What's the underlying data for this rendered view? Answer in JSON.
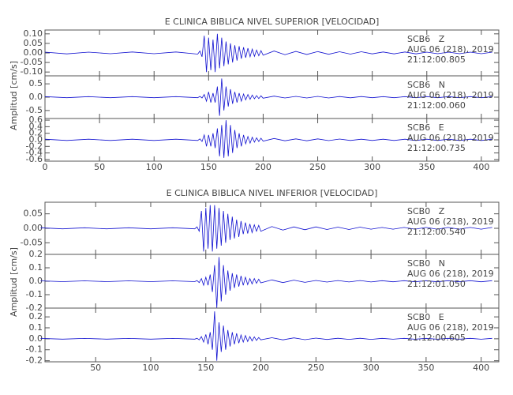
{
  "chart_data": [
    {
      "type": "line",
      "title": "E CLINICA BIBLICA NIVEL SUPERIOR [VELOCIDAD]",
      "ylabel": "Amplitud [cm/s]",
      "xlim": [
        0,
        416
      ],
      "xticks": [
        0,
        50,
        100,
        150,
        200,
        250,
        300,
        350,
        400
      ],
      "color": "#1010d0",
      "x": [
        0,
        20,
        40,
        60,
        80,
        100,
        120,
        140,
        142,
        144,
        146,
        148,
        150,
        152,
        154,
        156,
        158,
        160,
        162,
        164,
        166,
        168,
        170,
        172,
        174,
        176,
        178,
        180,
        182,
        184,
        186,
        188,
        190,
        192,
        194,
        196,
        198,
        200,
        210,
        220,
        230,
        240,
        250,
        260,
        270,
        280,
        290,
        300,
        310,
        320,
        330,
        340,
        350,
        360,
        370,
        380,
        390,
        400,
        410
      ],
      "panels": [
        {
          "ylim": [
            -0.12,
            0.12
          ],
          "yticks": [
            {
              "value": 0.1,
              "label": "0.10"
            },
            {
              "value": 0.05,
              "label": "0.05"
            },
            {
              "value": 0,
              "label": "0.00"
            },
            {
              "value": -0.05,
              "label": "-0.05"
            },
            {
              "value": -0.1,
              "label": "-0.10"
            }
          ],
          "station": "SCB6   Z",
          "date": "AUG 06 (218), 2019",
          "time": "21:12:00.805",
          "values": [
            0.004,
            -0.005,
            0.004,
            -0.004,
            0.005,
            -0.004,
            0.005,
            -0.006,
            0.01,
            -0.02,
            0.09,
            -0.1,
            0.08,
            -0.09,
            0.07,
            -0.1,
            0.1,
            -0.08,
            0.08,
            -0.07,
            0.06,
            -0.06,
            0.05,
            -0.05,
            0.04,
            -0.04,
            0.035,
            -0.03,
            0.03,
            -0.025,
            0.025,
            -0.02,
            0.02,
            -0.018,
            0.015,
            -0.015,
            0.012,
            -0.012,
            0.01,
            -0.009,
            0.008,
            -0.008,
            0.007,
            -0.007,
            0.006,
            -0.006,
            0.006,
            -0.005,
            0.005,
            -0.005,
            0.005,
            -0.005,
            0.004,
            -0.004,
            0.004,
            -0.004,
            0.004,
            -0.004,
            0.004
          ]
        },
        {
          "ylim": [
            -0.8,
            0.8
          ],
          "yticks": [
            0.5,
            {
              "value": 0,
              "label": "0.0"
            },
            -0.5
          ],
          "station": "SCB6   N",
          "date": "AUG 06 (218), 2019",
          "time": "21:12:00.060",
          "values": [
            0.02,
            -0.02,
            0.02,
            -0.02,
            0.02,
            -0.02,
            0.02,
            -0.02,
            0.03,
            -0.03,
            0.1,
            -0.15,
            0.2,
            -0.2,
            0.15,
            -0.2,
            0.4,
            -0.7,
            0.7,
            -0.5,
            0.4,
            -0.35,
            0.3,
            -0.25,
            0.2,
            -0.2,
            0.15,
            -0.15,
            0.12,
            -0.1,
            0.1,
            -0.08,
            0.08,
            -0.06,
            0.06,
            -0.05,
            0.05,
            -0.04,
            0.04,
            -0.03,
            0.03,
            -0.03,
            0.03,
            -0.03,
            0.025,
            -0.025,
            0.025,
            -0.02,
            0.02,
            -0.02,
            0.02,
            -0.02,
            0.02,
            -0.02,
            0.02,
            -0.02,
            0.02,
            -0.02,
            0.02
          ]
        },
        {
          "ylim": [
            -0.65,
            0.65
          ],
          "yticks": [
            0.6,
            0.4,
            0.2,
            {
              "value": 0,
              "label": "0.0"
            },
            -0.2,
            -0.4,
            -0.6
          ],
          "station": "SCB6   E",
          "date": "AUG 06 (218), 2019",
          "time": "21:12:00.735",
          "values": [
            0.02,
            -0.02,
            0.02,
            -0.02,
            0.02,
            -0.02,
            0.02,
            -0.02,
            0.03,
            -0.05,
            0.15,
            -0.2,
            0.15,
            -0.2,
            0.2,
            -0.25,
            0.35,
            -0.5,
            0.45,
            -0.55,
            0.6,
            -0.5,
            0.45,
            -0.4,
            0.3,
            -0.25,
            0.2,
            -0.2,
            0.15,
            -0.12,
            0.1,
            -0.1,
            0.08,
            -0.07,
            0.06,
            -0.05,
            0.05,
            -0.04,
            0.04,
            -0.03,
            0.03,
            -0.03,
            0.03,
            -0.025,
            0.025,
            -0.02,
            0.02,
            -0.02,
            0.02,
            -0.02,
            0.02,
            -0.02,
            0.02,
            -0.02,
            0.02,
            -0.02,
            0.02,
            -0.02,
            0.02
          ]
        }
      ]
    },
    {
      "type": "line",
      "title": "E CLINICA BIBLICA NIVEL INFERIOR [VELOCIDAD]",
      "ylabel": "Amplitud [cm/s]",
      "xlim": [
        4,
        416
      ],
      "xticks": [
        50,
        100,
        150,
        200,
        250,
        300,
        350,
        400
      ],
      "color": "#1010d0",
      "x": [
        0,
        20,
        40,
        60,
        80,
        100,
        120,
        140,
        142,
        144,
        146,
        148,
        150,
        152,
        154,
        156,
        158,
        160,
        162,
        164,
        166,
        168,
        170,
        172,
        174,
        176,
        178,
        180,
        182,
        184,
        186,
        188,
        190,
        192,
        194,
        196,
        198,
        200,
        210,
        220,
        230,
        240,
        250,
        260,
        270,
        280,
        290,
        300,
        310,
        320,
        330,
        340,
        350,
        360,
        370,
        380,
        390,
        400,
        410
      ],
      "panels": [
        {
          "ylim": [
            -0.09,
            0.09
          ],
          "yticks": [
            {
              "value": 0.05,
              "label": "0.05"
            },
            {
              "value": 0,
              "label": "0.00"
            },
            {
              "value": -0.05,
              "label": "-0.05"
            }
          ],
          "station": "SCB0   Z",
          "date": "AUG 06 (218), 2019",
          "time": "21:12:00.540",
          "values": [
            0.002,
            -0.002,
            0.002,
            -0.002,
            0.002,
            -0.002,
            0.002,
            -0.002,
            0.005,
            -0.01,
            0.06,
            -0.08,
            0.07,
            -0.07,
            0.08,
            -0.08,
            0.08,
            -0.07,
            0.07,
            -0.06,
            0.06,
            -0.05,
            0.05,
            -0.04,
            0.04,
            -0.035,
            0.03,
            -0.03,
            0.025,
            -0.02,
            0.02,
            -0.018,
            0.015,
            -0.015,
            0.012,
            -0.01,
            0.01,
            -0.01,
            0.006,
            -0.006,
            0.005,
            -0.005,
            0.005,
            -0.004,
            0.004,
            -0.004,
            0.004,
            -0.003,
            0.003,
            -0.003,
            0.003,
            -0.003,
            0.003,
            -0.003,
            0.003,
            -0.003,
            0.003,
            -0.003,
            0.003
          ]
        },
        {
          "ylim": [
            -0.2,
            0.2
          ],
          "yticks": [
            0.2,
            0.1,
            {
              "value": 0,
              "label": "0.0"
            },
            -0.1,
            -0.2
          ],
          "station": "SCB0   N",
          "date": "AUG 06 (218), 2019",
          "time": "21:12:01.050",
          "values": [
            0.003,
            -0.003,
            0.003,
            -0.003,
            0.003,
            -0.003,
            0.003,
            -0.003,
            0.005,
            -0.01,
            0.02,
            -0.03,
            0.03,
            -0.03,
            0.05,
            -0.08,
            0.12,
            -0.2,
            0.18,
            -0.15,
            0.12,
            -0.1,
            0.08,
            -0.07,
            0.06,
            -0.05,
            0.05,
            -0.04,
            0.04,
            -0.03,
            0.03,
            -0.025,
            0.02,
            -0.02,
            0.02,
            -0.015,
            0.015,
            -0.012,
            0.01,
            -0.01,
            0.008,
            -0.008,
            0.006,
            -0.006,
            0.005,
            -0.005,
            0.005,
            -0.005,
            0.004,
            -0.004,
            0.004,
            -0.004,
            0.004,
            -0.004,
            0.004,
            -0.004,
            0.004,
            -0.004,
            0.004
          ]
        },
        {
          "ylim": [
            -0.21,
            0.28
          ],
          "yticks": [
            0.2,
            0.1,
            {
              "value": 0,
              "label": "0.0"
            },
            -0.1,
            -0.2
          ],
          "station": "SCB0   E",
          "date": "AUG 06 (218), 2019",
          "time": "21:12:00.605",
          "values": [
            0.003,
            -0.003,
            0.003,
            -0.003,
            0.003,
            -0.003,
            0.003,
            -0.003,
            0.005,
            -0.01,
            0.02,
            -0.03,
            0.04,
            -0.05,
            0.06,
            -0.1,
            0.25,
            -0.2,
            0.15,
            -0.12,
            0.12,
            -0.1,
            0.08,
            -0.07,
            0.06,
            -0.05,
            0.05,
            -0.04,
            0.035,
            -0.03,
            0.03,
            -0.025,
            0.02,
            -0.02,
            0.018,
            -0.015,
            0.012,
            -0.01,
            0.01,
            -0.01,
            0.008,
            -0.008,
            0.006,
            -0.006,
            0.005,
            -0.005,
            0.005,
            -0.005,
            0.004,
            -0.004,
            0.004,
            -0.004,
            0.004,
            -0.004,
            0.004,
            -0.004,
            0.004,
            -0.004,
            0.004
          ]
        }
      ]
    }
  ]
}
